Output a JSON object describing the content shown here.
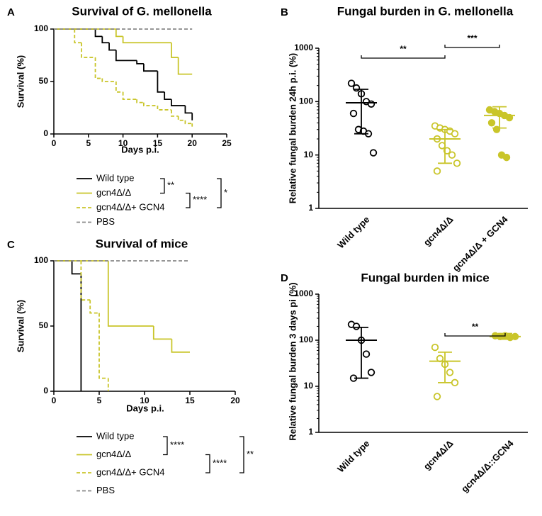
{
  "chart_data": [
    {
      "type": "survival",
      "label": "A",
      "title": "Survival of G. mellonella",
      "xlabel": "Days p.i.",
      "ylabel": "Survival (%)",
      "xlim": [
        0,
        25
      ],
      "xticks": [
        0,
        5,
        10,
        15,
        20,
        25
      ],
      "ylim": [
        0,
        100
      ],
      "yticks": [
        0,
        50,
        100
      ],
      "series": [
        {
          "name": "Wild type",
          "color": "#000000",
          "dash": false,
          "x": [
            0,
            6,
            7,
            8,
            9,
            12,
            13,
            15,
            16,
            17,
            19,
            20
          ],
          "values": [
            100,
            93,
            87,
            80,
            70,
            67,
            60,
            40,
            33,
            27,
            20,
            13
          ]
        },
        {
          "name": "gcn4Δ/Δ",
          "color": "#c9c52a",
          "dash": false,
          "x": [
            0,
            9,
            10,
            17,
            18,
            20
          ],
          "values": [
            100,
            93,
            87,
            73,
            57,
            57
          ]
        },
        {
          "name": "gcn4Δ/Δ+ GCN4",
          "color": "#c9c52a",
          "dash": true,
          "x": [
            0,
            3,
            4,
            6,
            7,
            9,
            10,
            12,
            13,
            15,
            17,
            18,
            19,
            20
          ],
          "values": [
            100,
            87,
            73,
            53,
            50,
            40,
            33,
            30,
            27,
            23,
            17,
            13,
            10,
            7
          ]
        },
        {
          "name": "PBS",
          "color": "#888888",
          "dash": true,
          "x": [
            0,
            20
          ],
          "values": [
            100,
            100
          ]
        }
      ],
      "annotations": [
        "**",
        "****",
        "*"
      ]
    },
    {
      "type": "dotplot",
      "label": "B",
      "title": "Fungal burden in G. mellonella",
      "ylabel": "Relative fungal burden 24h p.i. (%)",
      "log_scale": true,
      "ylim": [
        1,
        1000
      ],
      "yticks": [
        1,
        10,
        100,
        1000
      ],
      "categories": [
        "Wild type",
        "gcn4Δ/Δ",
        "gcn4Δ/Δ + GCN4"
      ],
      "colors": [
        "#000000",
        "#c9c52a",
        "#c9c52a"
      ],
      "markers": [
        "open",
        "open",
        "filled"
      ],
      "points": [
        [
          220,
          180,
          140,
          100,
          90,
          60,
          30,
          28,
          25,
          11
        ],
        [
          35,
          32,
          30,
          28,
          25,
          20,
          15,
          12,
          10,
          7,
          5
        ],
        [
          70,
          65,
          60,
          55,
          50,
          40,
          30,
          10,
          9
        ]
      ],
      "means": [
        95,
        20,
        55
      ],
      "ranges": [
        [
          25,
          170
        ],
        [
          7,
          30
        ],
        [
          32,
          80
        ]
      ],
      "annotations": [
        "**",
        "***"
      ]
    },
    {
      "type": "survival",
      "label": "C",
      "title": "Survival of mice",
      "xlabel": "Days p.i.",
      "ylabel": "Survival (%)",
      "xlim": [
        0,
        20
      ],
      "xticks": [
        0,
        5,
        10,
        15,
        20
      ],
      "ylim": [
        0,
        100
      ],
      "yticks": [
        0,
        50,
        100
      ],
      "series": [
        {
          "name": "Wild type",
          "color": "#000000",
          "dash": false,
          "x": [
            0,
            2,
            3
          ],
          "values": [
            100,
            90,
            0
          ]
        },
        {
          "name": "gcn4Δ/Δ",
          "color": "#c9c52a",
          "dash": false,
          "x": [
            0,
            6,
            11,
            13,
            15
          ],
          "values": [
            100,
            50,
            40,
            30,
            30
          ]
        },
        {
          "name": "gcn4Δ/Δ+ GCN4",
          "color": "#c9c52a",
          "dash": true,
          "x": [
            0,
            3,
            4,
            5,
            6
          ],
          "values": [
            100,
            70,
            60,
            10,
            0
          ]
        },
        {
          "name": "PBS",
          "color": "#888888",
          "dash": true,
          "x": [
            0,
            15
          ],
          "values": [
            100,
            100
          ]
        }
      ],
      "annotations": [
        "****",
        "****",
        "**"
      ]
    },
    {
      "type": "dotplot",
      "label": "D",
      "title": "Fungal burden in mice",
      "ylabel": "Relative fungal burden 3 days pi (%)",
      "log_scale": true,
      "ylim": [
        1,
        1000
      ],
      "yticks": [
        1,
        10,
        100,
        1000
      ],
      "categories": [
        "Wild type",
        "gcn4Δ/Δ",
        "gcn4Δ/Δ::GCN4"
      ],
      "colors": [
        "#000000",
        "#c9c52a",
        "#c9c52a"
      ],
      "markers": [
        "open",
        "open",
        "filled"
      ],
      "points": [
        [
          220,
          200,
          100,
          50,
          20,
          15
        ],
        [
          70,
          40,
          30,
          20,
          12,
          6
        ],
        [
          125,
          120,
          125,
          115,
          120
        ]
      ],
      "means": [
        100,
        35,
        120
      ],
      "ranges": [
        [
          15,
          190
        ],
        [
          12,
          55
        ],
        [
          105,
          140
        ]
      ],
      "annotations": [
        "**"
      ]
    }
  ]
}
